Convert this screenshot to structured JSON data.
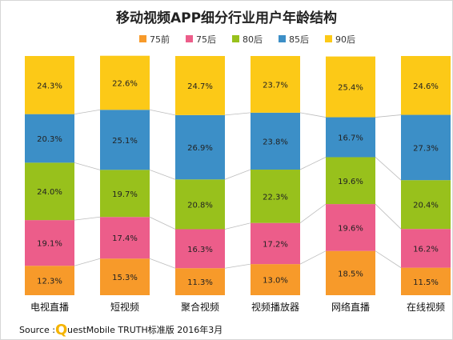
{
  "chart_data": {
    "type": "bar",
    "stacked": true,
    "title": "移动视频APP细分行业用户年龄结构",
    "categories": [
      "电视直播",
      "短视频",
      "聚合视频",
      "视频播放器",
      "网络直播",
      "在线视频"
    ],
    "series": [
      {
        "name": "75前",
        "color": "#f79a2a",
        "values": [
          12.3,
          15.3,
          11.3,
          13.0,
          18.5,
          11.5
        ]
      },
      {
        "name": "75后",
        "color": "#ec5d8a",
        "values": [
          19.1,
          17.4,
          16.3,
          17.2,
          19.6,
          16.2
        ]
      },
      {
        "name": "80后",
        "color": "#98c11c",
        "values": [
          24.0,
          19.7,
          20.8,
          22.3,
          19.6,
          20.4
        ]
      },
      {
        "name": "85后",
        "color": "#3c8fc7",
        "values": [
          20.3,
          25.1,
          26.9,
          23.8,
          16.7,
          27.3
        ]
      },
      {
        "name": "90后",
        "color": "#fcc917",
        "values": [
          24.3,
          22.6,
          24.7,
          23.7,
          25.4,
          24.6
        ]
      }
    ],
    "value_suffix": "%",
    "ylim": [
      0,
      100
    ],
    "legend_position": "top",
    "grid": false
  },
  "source": {
    "prefix": "Source :",
    "logo_letter": "Q",
    "rest": "uestMobile TRUTH标准版 2016年3月"
  }
}
